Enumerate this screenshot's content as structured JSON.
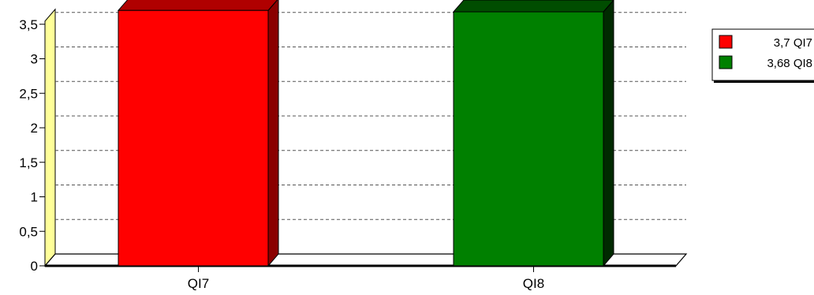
{
  "chart_data": {
    "type": "bar",
    "categories": [
      "QI7",
      "QI8"
    ],
    "values": [
      3.7,
      3.68
    ],
    "ylim": [
      0,
      3.5
    ],
    "yticks": [
      {
        "value": 0,
        "label": "0"
      },
      {
        "value": 0.5,
        "label": "0,5"
      },
      {
        "value": 1,
        "label": "1"
      },
      {
        "value": 1.5,
        "label": "1,5"
      },
      {
        "value": 2,
        "label": "2"
      },
      {
        "value": 2.5,
        "label": "2,5"
      },
      {
        "value": 3,
        "label": "3"
      },
      {
        "value": 3.5,
        "label": "3,5"
      }
    ],
    "grid": true,
    "legend_position": "top-right",
    "legend": [
      {
        "label": "3,7 QI7",
        "color": "#ff0000"
      },
      {
        "label": "3,68 QI8",
        "color": "#008000"
      }
    ],
    "bar_colors": [
      {
        "front": "#ff0000",
        "top": "#b00000",
        "side": "#8a0000"
      },
      {
        "front": "#008000",
        "top": "#004d00",
        "side": "#002a00"
      }
    ],
    "wall_color": "#ffff99"
  }
}
